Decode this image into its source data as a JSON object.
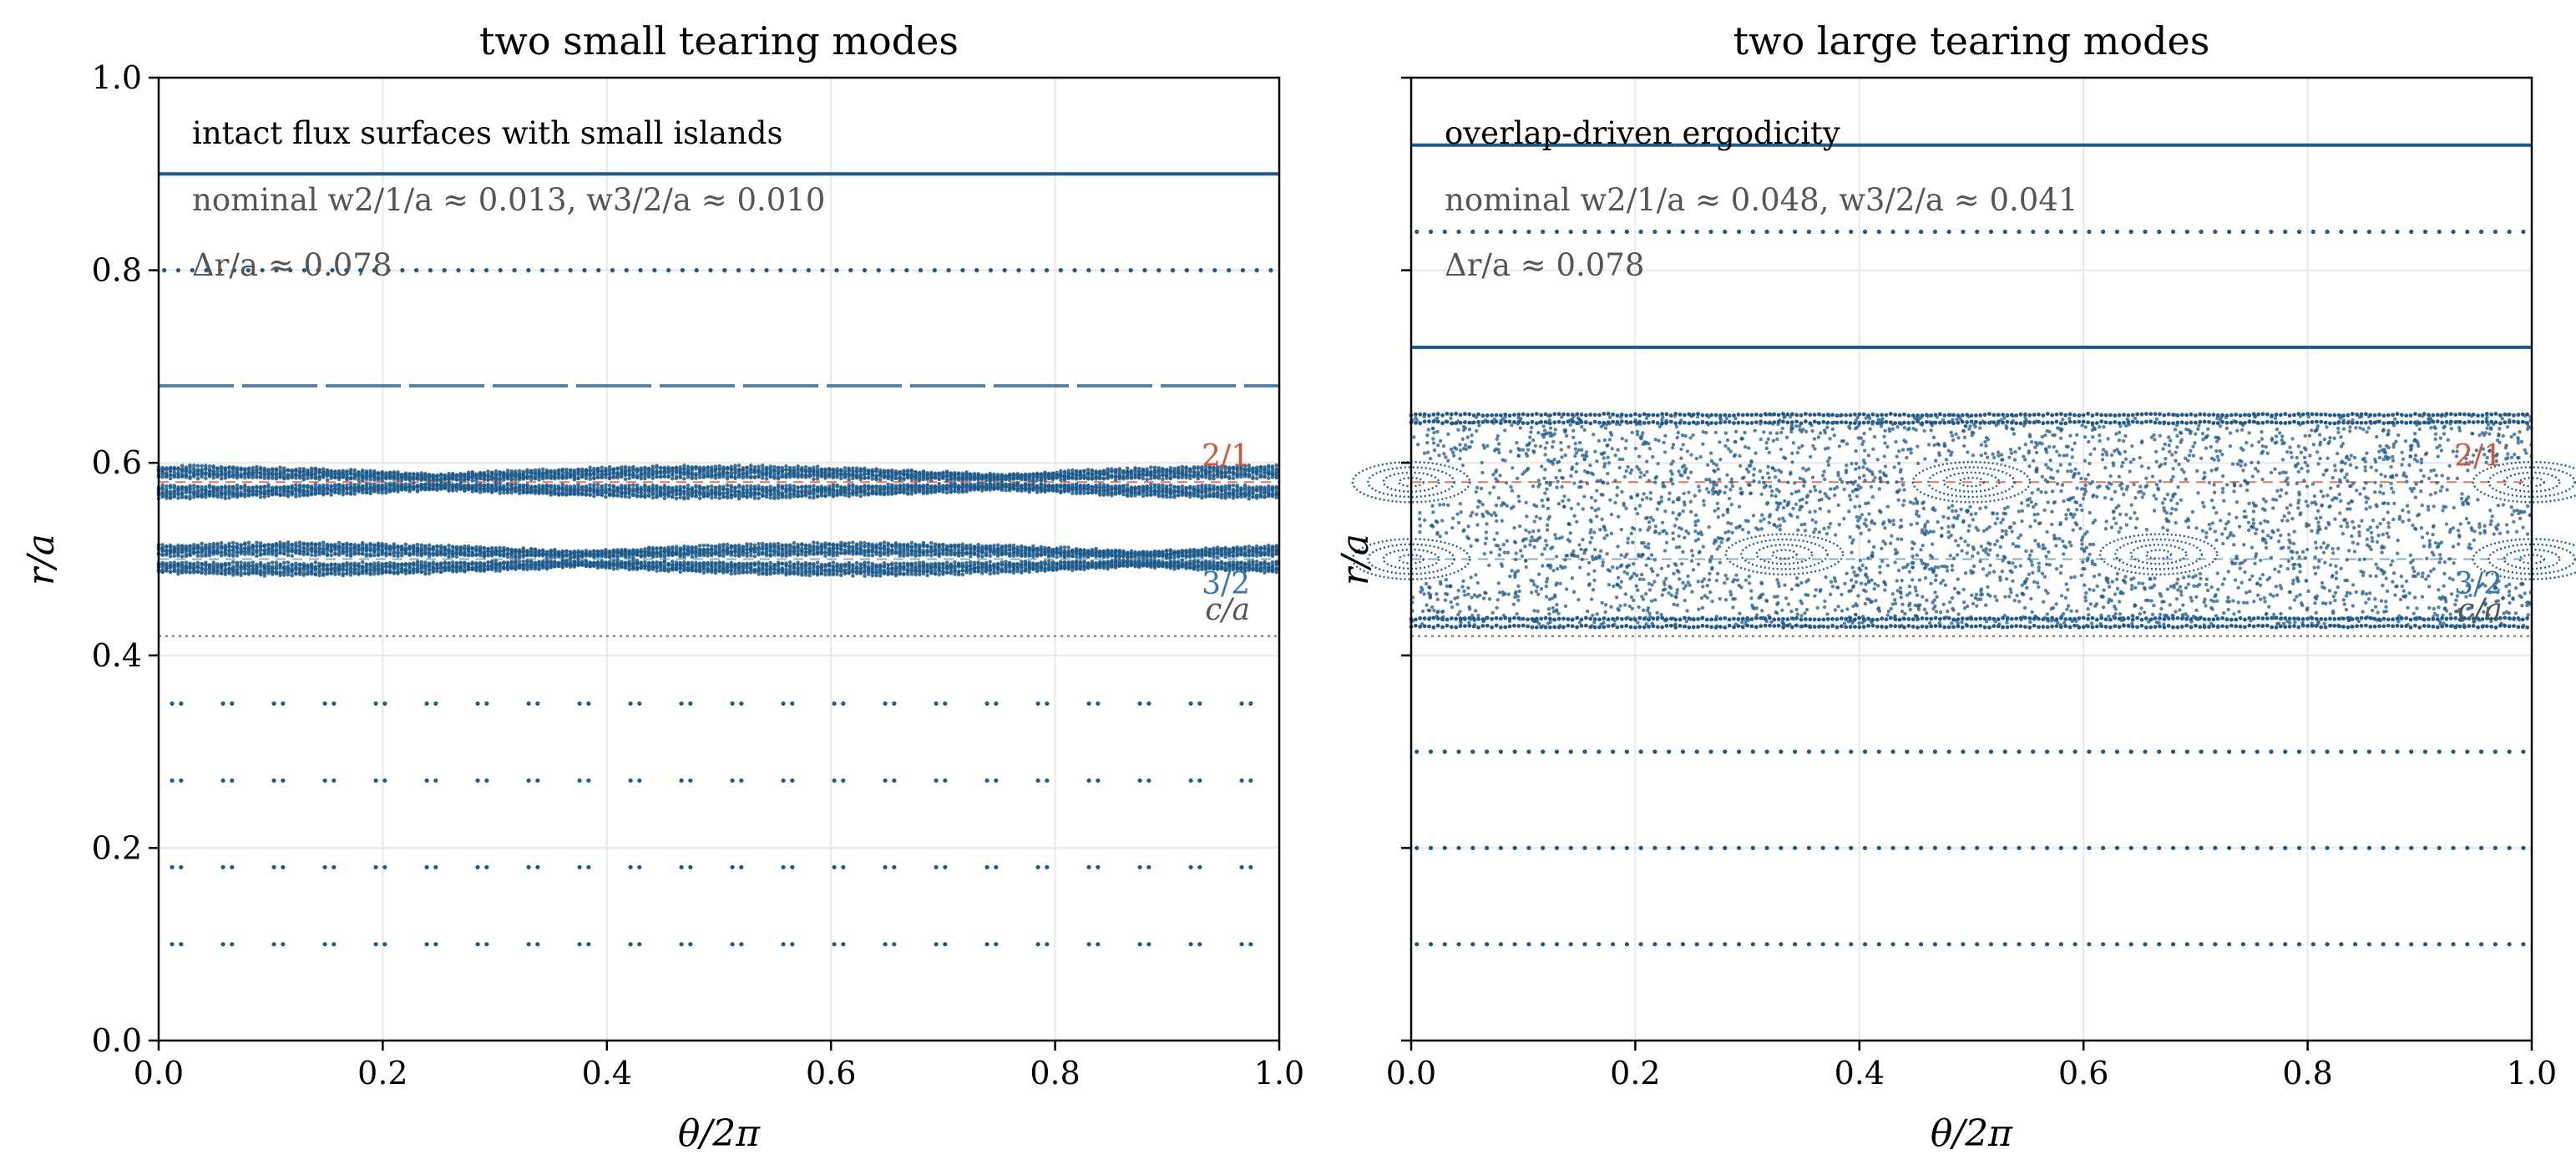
{
  "figure": {
    "colors": {
      "points": "#1f5a8a",
      "mode21": "#d0553a",
      "mode32": "#3a78a8",
      "annotation": "#555555",
      "grid": "#e8e8e8"
    }
  },
  "chart_data": [
    {
      "type": "scatter",
      "title": "two small tearing modes",
      "xlabel": "θ/2π",
      "ylabel": "r/a",
      "xlim": [
        0,
        1
      ],
      "ylim": [
        0,
        1
      ],
      "xticks": [
        "0.0",
        "0.2",
        "0.4",
        "0.6",
        "0.8",
        "1.0"
      ],
      "yticks": [
        "0.0",
        "0.2",
        "0.4",
        "0.6",
        "0.8",
        "1.0"
      ],
      "grid": true,
      "annotations": {
        "headline": "intact flux surfaces with small islands",
        "widths": "nominal w2/1/a ≈ 0.013, w3/2/a ≈ 0.010",
        "spacing": "Δr/a ≈ 0.078",
        "label_21": "2/1",
        "label_32": "3/2",
        "label_c": "c/a"
      },
      "resonant_surfaces": {
        "q21": 0.58,
        "q32": 0.5,
        "c": 0.42
      },
      "surfaces": [
        {
          "r": 0.9,
          "style": "solid"
        },
        {
          "r": 0.8,
          "style": "dotted"
        },
        {
          "r": 0.68,
          "style": "dashed"
        },
        {
          "r": 0.35,
          "style": "pairs"
        },
        {
          "r": 0.27,
          "style": "pairs"
        },
        {
          "r": 0.18,
          "style": "pairs"
        },
        {
          "r": 0.1,
          "style": "pairs"
        }
      ],
      "island_chains": [
        {
          "center": 0.58,
          "m": 4,
          "half_width": 0.016,
          "phase": 0.0
        },
        {
          "center": 0.5,
          "m": 4,
          "half_width": 0.016,
          "phase": 0.125
        }
      ]
    },
    {
      "type": "scatter",
      "title": "two large tearing modes",
      "xlabel": "θ/2π",
      "ylabel": "r/a",
      "xlim": [
        0,
        1
      ],
      "ylim": [
        0,
        1
      ],
      "xticks": [
        "0.0",
        "0.2",
        "0.4",
        "0.6",
        "0.8",
        "1.0"
      ],
      "yticks": [
        "0.0",
        "0.2",
        "0.4",
        "0.6",
        "0.8",
        "1.0"
      ],
      "grid": true,
      "annotations": {
        "headline": "overlap-driven ergodicity",
        "widths": "nominal w2/1/a ≈ 0.048, w3/2/a ≈ 0.041",
        "spacing": "Δr/a ≈ 0.078",
        "label_21": "2/1",
        "label_32": "3/2",
        "label_c": "c/a"
      },
      "resonant_surfaces": {
        "q21": 0.58,
        "q32": 0.5,
        "c": 0.42
      },
      "surfaces": [
        {
          "r": 0.93,
          "style": "solid"
        },
        {
          "r": 0.84,
          "style": "dotted"
        },
        {
          "r": 0.72,
          "style": "solid"
        },
        {
          "r": 0.3,
          "style": "dotted"
        },
        {
          "r": 0.2,
          "style": "dotted"
        },
        {
          "r": 0.1,
          "style": "dotted"
        }
      ],
      "chaotic_band": [
        0.43,
        0.65
      ],
      "island_centers": [
        {
          "x": 0.0,
          "r": 0.58
        },
        {
          "x": 0.5,
          "r": 0.58
        },
        {
          "x": 1.0,
          "r": 0.58
        },
        {
          "x": 0.0,
          "r": 0.5
        },
        {
          "x": 0.333,
          "r": 0.505
        },
        {
          "x": 0.667,
          "r": 0.505
        },
        {
          "x": 1.0,
          "r": 0.5
        }
      ]
    }
  ]
}
